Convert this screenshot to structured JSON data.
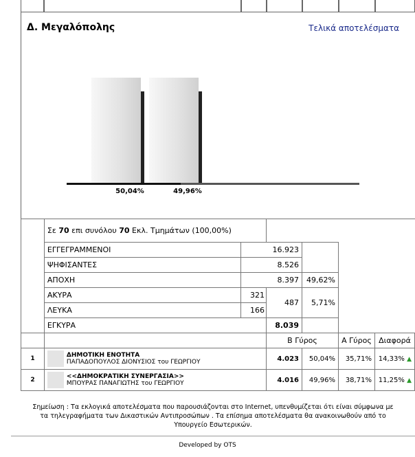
{
  "header": {
    "area_title": "Δ. Μεγαλόπολης",
    "results_link": "Τελικά αποτελέσματα"
  },
  "chart_data": {
    "type": "bar",
    "categories": [
      "ΔΗΜΟΤΙΚΗ ΕΝΟΤΗΤΑ",
      "<<ΔΗΜΟΚΡΑΤΙΚΗ ΣΥΝΕΡΓΑΣΙΑ>>"
    ],
    "values": [
      50.04,
      49.96
    ],
    "labels": [
      "50,04%",
      "49,96%"
    ],
    "ylim": [
      0,
      60
    ]
  },
  "stats": {
    "counted_prefix": "Σε",
    "counted_num": "70",
    "counted_mid": "επι συνόλου",
    "counted_total": "70",
    "counted_suffix": "Εκλ. Τμημάτων (100,00%)",
    "registered_label": "ΕΓΓΕΓΡΑΜΜΕΝΟΙ",
    "registered_value": "16.923",
    "voted_label": "ΨΗΦΙΣΑΝΤΕΣ",
    "voted_value": "8.526",
    "abstention_label": "ΑΠΟΧΗ",
    "abstention_value": "8.397",
    "abstention_pct": "49,62%",
    "invalid_label": "ΑΚΥΡΑ",
    "invalid_value": "321",
    "blank_label": "ΛΕΥΚΑ",
    "blank_value": "166",
    "invalid_blank_total": "487",
    "invalid_blank_pct": "5,71%",
    "valid_label": "ΕΓΚΥΡΑ",
    "valid_value": "8.039"
  },
  "columns": {
    "second_round": "Β Γύρος",
    "first_round": "Α Γύρος",
    "difference": "Διαφορά"
  },
  "parties": [
    {
      "rank": "1",
      "name": "ΔΗΜΟΤΙΚΗ ΕΝΟΤΗΤΑ",
      "leader": "ΠΑΠΑΔΟΠΟΥΛΟΣ ΔΙΟΝΥΣΙΟΣ του ΓΕΩΡΓΙΟΥ",
      "votes": "4.023",
      "pct_b": "50,04%",
      "pct_a": "35,71%",
      "diff": "14,33%",
      "arrow": "▲"
    },
    {
      "rank": "2",
      "name": "<<ΔΗΜΟΚΡΑΤΙΚΗ ΣΥΝΕΡΓΑΣΙΑ>>",
      "leader": "ΜΠΟΥΡΑΣ ΠΑΝΑΓΙΩΤΗΣ του ΓΕΩΡΓΙΟΥ",
      "votes": "4.016",
      "pct_b": "49,96%",
      "pct_a": "38,71%",
      "diff": "11,25%",
      "arrow": "▲"
    }
  ],
  "footer": {
    "note": "Σημείωση : Τα εκλογικά αποτελέσματα που παρουσιάζονται στο Internet, υπενθυμίζεται ότι είναι σύμφωνα με τα τηλεγραφήματα των Δικαστικών Αντιπροσώπων . Τα επίσημα αποτελέσματα θα ανακοινωθούν από το Υπουργείο Εσωτερικών.",
    "developed_by": "Developed by OTS"
  },
  "colors": {
    "link": "#1a2a8a",
    "up_arrow": "#2a9a2a"
  }
}
